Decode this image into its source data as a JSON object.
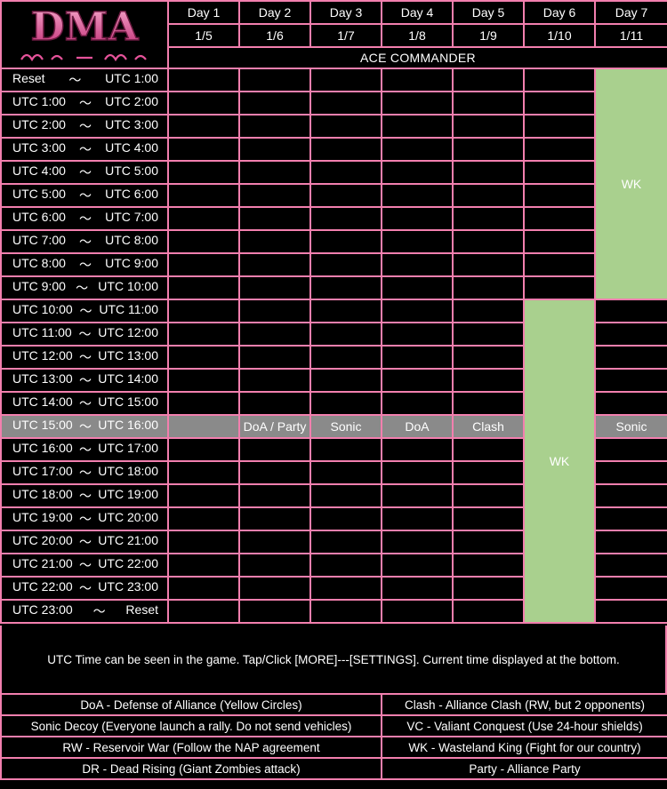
{
  "header": {
    "days": [
      {
        "label": "Day 1",
        "date": "1/5"
      },
      {
        "label": "Day 2",
        "date": "1/6"
      },
      {
        "label": "Day 3",
        "date": "1/7"
      },
      {
        "label": "Day 4",
        "date": "1/8"
      },
      {
        "label": "Day 5",
        "date": "1/9"
      },
      {
        "label": "Day 6",
        "date": "1/10"
      },
      {
        "label": "Day 7",
        "date": "1/11"
      }
    ],
    "banner": "ACE COMMANDER"
  },
  "logo": {
    "text": "DMA",
    "icon": "alliance-logo-icon",
    "color": "#e6539a"
  },
  "rows": [
    {
      "start": "Reset",
      "sep": "〜",
      "end": "UTC 1:00"
    },
    {
      "start": "UTC 1:00",
      "sep": "〜",
      "end": "UTC 2:00"
    },
    {
      "start": "UTC 2:00",
      "sep": "〜",
      "end": "UTC 3:00"
    },
    {
      "start": "UTC 3:00",
      "sep": "〜",
      "end": "UTC 4:00"
    },
    {
      "start": "UTC 4:00",
      "sep": "〜",
      "end": "UTC 5:00"
    },
    {
      "start": "UTC 5:00",
      "sep": "〜",
      "end": "UTC 6:00"
    },
    {
      "start": "UTC 6:00",
      "sep": "〜",
      "end": "UTC 7:00"
    },
    {
      "start": "UTC 7:00",
      "sep": "〜",
      "end": "UTC 8:00"
    },
    {
      "start": "UTC 8:00",
      "sep": "〜",
      "end": "UTC 9:00"
    },
    {
      "start": "UTC 9:00",
      "sep": "〜",
      "end": "UTC 10:00"
    },
    {
      "start": "UTC 10:00",
      "sep": "〜",
      "end": "UTC 11:00"
    },
    {
      "start": "UTC 11:00",
      "sep": "〜",
      "end": "UTC 12:00"
    },
    {
      "start": "UTC 12:00",
      "sep": "〜",
      "end": "UTC 13:00"
    },
    {
      "start": "UTC 13:00",
      "sep": "〜",
      "end": "UTC 14:00"
    },
    {
      "start": "UTC 14:00",
      "sep": "〜",
      "end": "UTC 15:00"
    },
    {
      "start": "UTC 15:00",
      "sep": "〜",
      "end": "UTC 16:00"
    },
    {
      "start": "UTC 16:00",
      "sep": "〜",
      "end": "UTC 17:00"
    },
    {
      "start": "UTC 17:00",
      "sep": "〜",
      "end": "UTC 18:00"
    },
    {
      "start": "UTC 18:00",
      "sep": "〜",
      "end": "UTC 19:00"
    },
    {
      "start": "UTC 19:00",
      "sep": "〜",
      "end": "UTC 20:00"
    },
    {
      "start": "UTC 20:00",
      "sep": "〜",
      "end": "UTC 21:00"
    },
    {
      "start": "UTC 21:00",
      "sep": "〜",
      "end": "UTC 22:00"
    },
    {
      "start": "UTC 22:00",
      "sep": "〜",
      "end": "UTC 23:00"
    },
    {
      "start": "UTC 23:00",
      "sep": "〜",
      "end": "Reset"
    }
  ],
  "events": {
    "day2_1500": "DoA / Party",
    "day3_1500": "Sonic",
    "day4_1500": "DoA",
    "day5_1500": "Clash",
    "day7_1500": "Sonic",
    "day6_wk": "WK",
    "day7_wk": "WK"
  },
  "colors": {
    "border": "#f27fae",
    "wk": "#a9d08e",
    "banner": "#1f3a6e",
    "highlight": "#8a8a8a"
  },
  "note": "UTC Time can be seen in the game. Tap/Click [MORE]---[SETTINGS]. Current time displayed at the bottom.",
  "legend": [
    {
      "left": "DoA - Defense of Alliance (Yellow Circles)",
      "right": "Clash - Alliance Clash (RW, but 2 opponents)"
    },
    {
      "left": "Sonic Decoy (Everyone launch a rally. Do not send vehicles)",
      "right": "VC - Valiant Conquest (Use 24-hour shields)"
    },
    {
      "left": "RW - Reservoir War (Follow the NAP agreement",
      "right": "WK - Wasteland King (Fight for our country)"
    },
    {
      "left": "DR - Dead Rising (Giant Zombies attack)",
      "right": "Party - Alliance Party"
    }
  ]
}
